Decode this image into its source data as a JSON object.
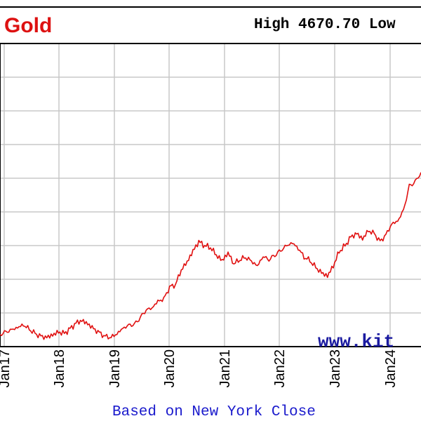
{
  "header": {
    "title": "Gold",
    "stats": "High 4670.70 Low"
  },
  "footer": {
    "note": "Based on New York Close"
  },
  "watermark": {
    "text": "www.kit"
  },
  "colors": {
    "title": "#dd1111",
    "line": "#e01010",
    "grid": "#c8c8c8",
    "footer": "#1a1acc",
    "watermark": "#1a1aa0",
    "frame": "#000000"
  },
  "chart_data": {
    "type": "line",
    "title": "Gold",
    "grid": true,
    "x_tick_labels": [
      "Jan17",
      "Jan18",
      "Jan19",
      "Jan20",
      "Jan21",
      "Jan22",
      "Jan23",
      "Jan24"
    ],
    "series": [
      {
        "values": [
          1218,
          1236,
          1252,
          1268,
          1288,
          1256,
          1224,
          1204,
          1196,
          1214,
          1235,
          1225,
          1260,
          1302,
          1320,
          1296,
          1260,
          1230,
          1202,
          1196,
          1222,
          1262,
          1285,
          1292,
          1342,
          1398,
          1412,
          1462,
          1478,
          1566,
          1584,
          1692,
          1752,
          1832,
          1902,
          1872,
          1858,
          1802,
          1762,
          1818,
          1738,
          1768,
          1786,
          1758,
          1722,
          1792,
          1768,
          1802,
          1836,
          1872,
          1892,
          1852,
          1788,
          1762,
          1712,
          1672,
          1648,
          1722,
          1828,
          1872,
          1936,
          1962,
          1922,
          1982,
          1962,
          1902,
          1952,
          2032,
          2052,
          2132,
          2312,
          2342,
          2412
        ]
      }
    ]
  }
}
